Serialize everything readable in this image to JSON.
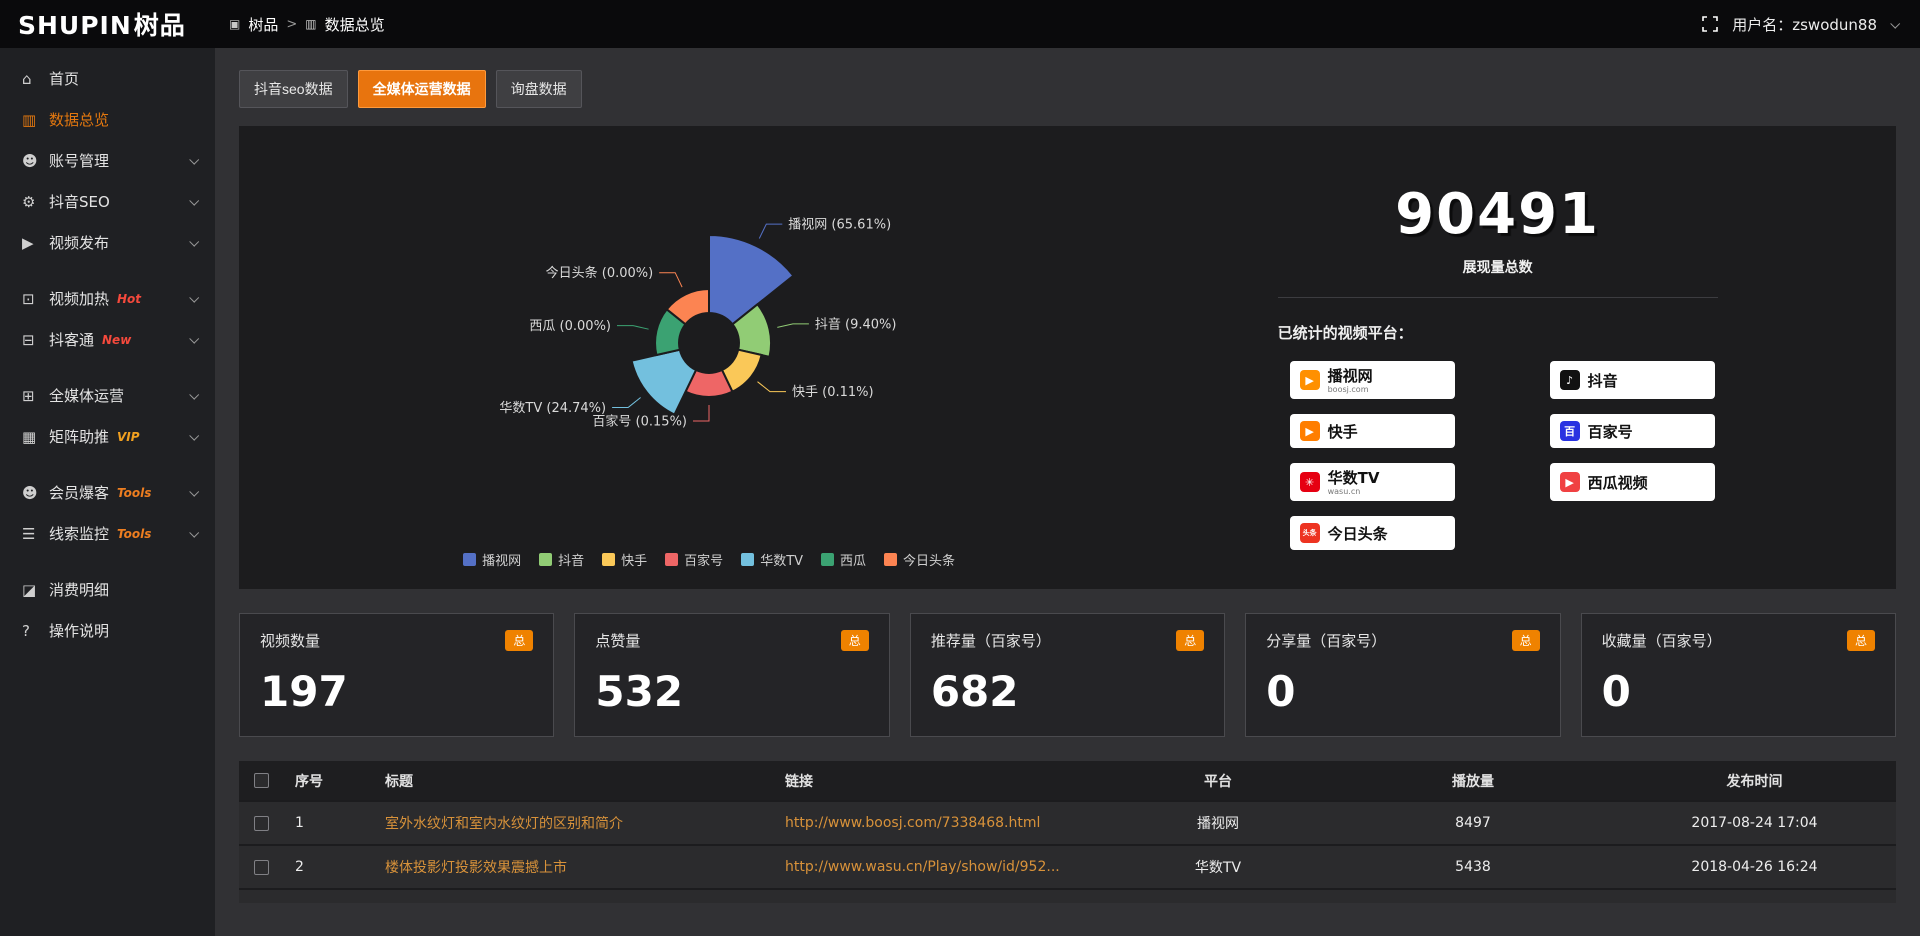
{
  "app": {
    "logo_text": "SHUPIN",
    "logo_suffix": "树品"
  },
  "header": {
    "breadcrumb": [
      {
        "icon": "▣",
        "label": "树品"
      },
      {
        "icon": "▥",
        "label": "数据总览"
      }
    ],
    "separator": ">",
    "username": "用户名：zswodun88"
  },
  "sidebar": {
    "items": [
      {
        "icon": "⌂",
        "icon_name": "home-icon",
        "label": "首页"
      },
      {
        "icon": "▥",
        "icon_name": "chart-icon",
        "label": "数据总览",
        "active": true
      },
      {
        "icon": "☻",
        "icon_name": "user-icon",
        "label": "账号管理",
        "chevron": true
      },
      {
        "icon": "⚙",
        "icon_name": "gear-icon",
        "label": "抖音SEO",
        "chevron": true
      },
      {
        "icon": "▶",
        "icon_name": "video-icon",
        "label": "视频发布",
        "chevron": true
      },
      {
        "icon": "⊡",
        "icon_name": "monitor-icon",
        "label": "视频加热",
        "tag": "Hot",
        "tag_color": "#f4493c",
        "chevron": true,
        "gap": true
      },
      {
        "icon": "⊟",
        "icon_name": "comment-icon",
        "label": "抖客通",
        "tag": "New",
        "tag_color": "#f4493c",
        "chevron": true
      },
      {
        "icon": "⊞",
        "icon_name": "media-icon",
        "label": "全媒体运营",
        "chevron": true,
        "gap": true
      },
      {
        "icon": "▦",
        "icon_name": "grid-icon",
        "label": "矩阵助推",
        "tag": "VIP",
        "tag_color": "#f0a020",
        "chevron": true
      },
      {
        "icon": "☻",
        "icon_name": "users-icon",
        "label": "会员爆客",
        "tag": "Tools",
        "tag_color": "#ee7e20",
        "chevron": true,
        "gap": true
      },
      {
        "icon": "☰",
        "icon_name": "filter-icon",
        "label": "线索监控",
        "tag": "Tools",
        "tag_color": "#ee7e20",
        "chevron": true
      },
      {
        "icon": "◪",
        "icon_name": "bill-icon",
        "label": "消费明细",
        "gap": true
      },
      {
        "icon": "?",
        "icon_name": "help-icon",
        "label": "操作说明"
      }
    ]
  },
  "tabs": [
    {
      "label": "抖音seo数据"
    },
    {
      "label": "全媒体运营数据",
      "active": true
    },
    {
      "label": "询盘数据"
    }
  ],
  "chart_data": {
    "type": "pie",
    "variant": "rose",
    "unit": "%",
    "legend_position": "bottom",
    "slices": [
      {
        "label": "播视网",
        "value": 65.61,
        "color": "#5470c6"
      },
      {
        "label": "抖音",
        "value": 9.4,
        "color": "#91cc75"
      },
      {
        "label": "快手",
        "value": 0.11,
        "color": "#fac858"
      },
      {
        "label": "百家号",
        "value": 0.15,
        "color": "#ee6666"
      },
      {
        "label": "华数TV",
        "value": 24.74,
        "color": "#73c0de"
      },
      {
        "label": "西瓜",
        "value": 0.0,
        "color": "#3ba272"
      },
      {
        "label": "今日头条",
        "value": 0.0,
        "color": "#fc8452"
      }
    ],
    "legend_order": [
      "播视网",
      "抖音",
      "快手",
      "百家号",
      "华数TV",
      "西瓜",
      "今日头条"
    ]
  },
  "overview": {
    "total_value": "90491",
    "total_label": "展现量总数",
    "platforms_title": "已统计的视频平台：",
    "badges": [
      {
        "label": "播视网",
        "sub": "boosj.com",
        "icon": "▶",
        "icon_bg": "#ff9000",
        "icon_name": "boosj-logo"
      },
      {
        "label": "抖音",
        "icon": "♪",
        "icon_bg": "#111111",
        "icon_name": "douyin-logo"
      },
      {
        "label": "快手",
        "icon": "▶",
        "icon_bg": "#ff7e00",
        "icon_name": "kuaishou-logo"
      },
      {
        "label": "百家号",
        "icon": "百",
        "icon_bg": "#2932e1",
        "icon_name": "baijiahao-logo"
      },
      {
        "label": "华数TV",
        "sub": "wasu.cn",
        "icon": "✳",
        "icon_bg": "#e60012",
        "icon_name": "wasu-logo"
      },
      {
        "label": "西瓜视频",
        "icon": "▶",
        "icon_bg": "#f04142",
        "icon_name": "xigua-logo"
      },
      {
        "label": "今日头条",
        "icon": "头条",
        "icon_bg": "#ed3321",
        "icon_name": "toutiao-logo",
        "tiny": true
      }
    ]
  },
  "stat_cards": [
    {
      "label": "视频数量",
      "badge": "总",
      "value": "197"
    },
    {
      "label": "点赞量",
      "badge": "总",
      "value": "532"
    },
    {
      "label": "推荐量（百家号）",
      "badge": "总",
      "value": "682"
    },
    {
      "label": "分享量（百家号）",
      "badge": "总",
      "value": "0"
    },
    {
      "label": "收藏量（百家号）",
      "badge": "总",
      "value": "0"
    }
  ],
  "table": {
    "headers": [
      "序号",
      "标题",
      "链接",
      "平台",
      "播放量",
      "发布时间"
    ],
    "rows": [
      {
        "no": "1",
        "title": "室外水纹灯和室内水纹灯的区别和简介",
        "link": "http://www.boosj.com/7338468.html",
        "platform": "播视网",
        "plays": "8497",
        "time": "2017-08-24 17:04"
      },
      {
        "no": "2",
        "title": "楼体投影灯投影效果震撼上市",
        "link": "http://www.wasu.cn/Play/show/id/952...",
        "platform": "华数TV",
        "plays": "5438",
        "time": "2018-04-26 16:24"
      }
    ]
  }
}
